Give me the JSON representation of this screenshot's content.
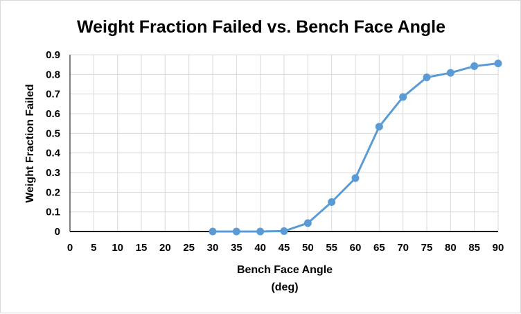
{
  "chart_data": {
    "type": "line",
    "title": "Weight Fraction Failed vs. Bench Face Angle",
    "xlabel_line1": "Bench Face Angle",
    "xlabel_line2": "(deg)",
    "ylabel": "Weight Fraction Failed",
    "xlim": [
      0,
      90
    ],
    "ylim": [
      0,
      0.9
    ],
    "xticks": [
      0,
      5,
      10,
      15,
      20,
      25,
      30,
      35,
      40,
      45,
      50,
      55,
      60,
      65,
      70,
      75,
      80,
      85,
      90
    ],
    "yticks": [
      0,
      0.1,
      0.2,
      0.3,
      0.4,
      0.5,
      0.6,
      0.7,
      0.8,
      0.9
    ],
    "ytick_labels": [
      "0",
      "0.1",
      "0.2",
      "0.3",
      "0.4",
      "0.5",
      "0.6",
      "0.7",
      "0.8",
      "0.9"
    ],
    "grid": true,
    "series": [
      {
        "color": "#5b9bd5",
        "x": [
          30,
          35,
          40,
          45,
          50,
          55,
          60,
          65,
          70,
          75,
          80,
          85,
          90
        ],
        "y": [
          0,
          0,
          0,
          0.002,
          0.043,
          0.15,
          0.272,
          0.534,
          0.685,
          0.785,
          0.808,
          0.842,
          0.856
        ]
      }
    ]
  }
}
